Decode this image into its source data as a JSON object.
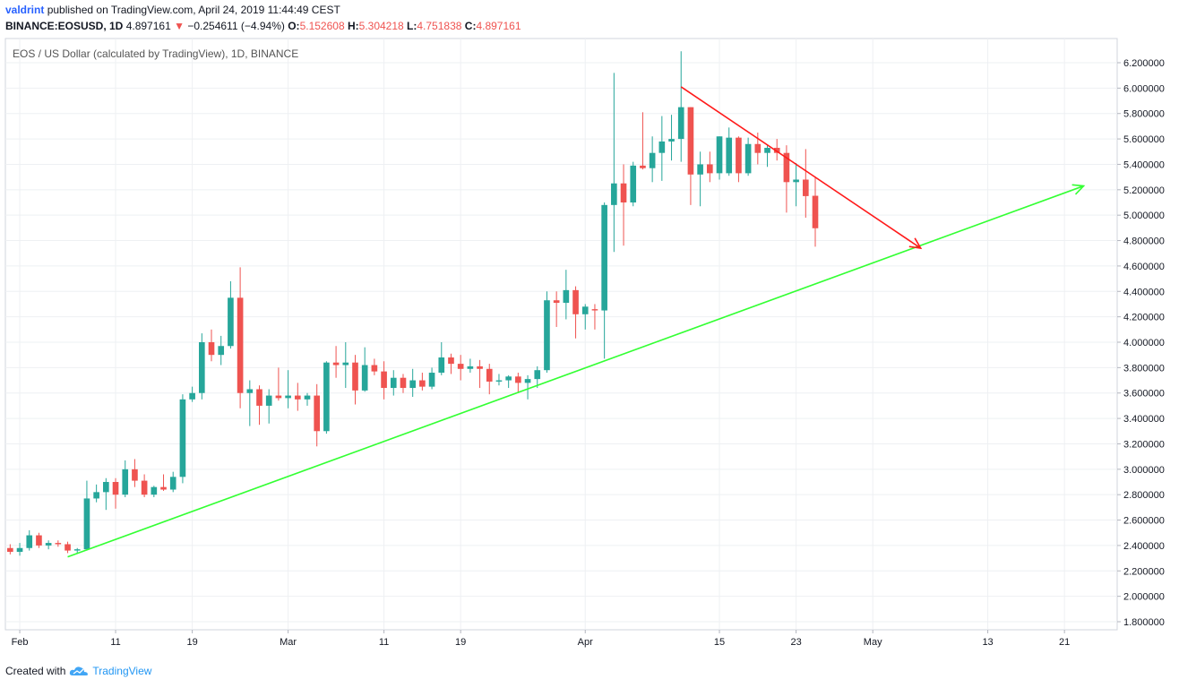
{
  "header": {
    "user": "valdrint",
    "published": "published on TradingView.com, April 24, 2019 11:44:49 CEST",
    "symbol": "BINANCE:EOSUSD, 1D",
    "last": "4.897161",
    "change": "−0.254611 (−4.94%)",
    "o_label": "O:",
    "o": "5.152608",
    "h_label": "H:",
    "h": "5.304218",
    "l_label": "L:",
    "l": "4.751838",
    "c_label": "C:",
    "c": "4.897161"
  },
  "footer": {
    "created_with": "Created with",
    "brand": "TradingView"
  },
  "colors": {
    "up": "#26a69a",
    "down": "#ef5350",
    "support_line": "#33ff33",
    "resistance_line": "#ff1a1a",
    "grid": "#eef0f3"
  },
  "chart_data": {
    "type": "candlestick",
    "title": "EOS / US Dollar (calculated by TradingView), 1D, BINANCE",
    "ylim": [
      1.7,
      6.35
    ],
    "y_ticks": [
      "6.200000",
      "6.000000",
      "5.800000",
      "5.600000",
      "5.400000",
      "5.200000",
      "5.000000",
      "4.800000",
      "4.600000",
      "4.400000",
      "4.200000",
      "4.000000",
      "3.800000",
      "3.600000",
      "3.400000",
      "3.200000",
      "3.000000",
      "2.800000",
      "2.600000",
      "2.400000",
      "2.200000",
      "2.000000",
      "1.800000"
    ],
    "x_ticks": [
      {
        "label": "Feb",
        "date": "2019-02-01"
      },
      {
        "label": "11",
        "date": "2019-02-11"
      },
      {
        "label": "19",
        "date": "2019-02-19"
      },
      {
        "label": "Mar",
        "date": "2019-03-01"
      },
      {
        "label": "11",
        "date": "2019-03-11"
      },
      {
        "label": "19",
        "date": "2019-03-19"
      },
      {
        "label": "Apr",
        "date": "2019-04-01"
      },
      {
        "label": "15",
        "date": "2019-04-15"
      },
      {
        "label": "23",
        "date": "2019-04-23"
      },
      {
        "label": "May",
        "date": "2019-05-01"
      },
      {
        "label": "13",
        "date": "2019-05-13"
      },
      {
        "label": "21",
        "date": "2019-05-21"
      }
    ],
    "x_range": [
      "2019-01-31",
      "2019-05-27"
    ],
    "candles": [
      {
        "date": "2019-01-31",
        "o": 2.38,
        "h": 2.41,
        "l": 2.33,
        "c": 2.35
      },
      {
        "date": "2019-02-01",
        "o": 2.35,
        "h": 2.42,
        "l": 2.32,
        "c": 2.38
      },
      {
        "date": "2019-02-02",
        "o": 2.38,
        "h": 2.52,
        "l": 2.36,
        "c": 2.48
      },
      {
        "date": "2019-02-03",
        "o": 2.48,
        "h": 2.5,
        "l": 2.38,
        "c": 2.4
      },
      {
        "date": "2019-02-04",
        "o": 2.4,
        "h": 2.44,
        "l": 2.37,
        "c": 2.42
      },
      {
        "date": "2019-02-05",
        "o": 2.42,
        "h": 2.44,
        "l": 2.39,
        "c": 2.41
      },
      {
        "date": "2019-02-06",
        "o": 2.41,
        "h": 2.43,
        "l": 2.34,
        "c": 2.36
      },
      {
        "date": "2019-02-07",
        "o": 2.36,
        "h": 2.38,
        "l": 2.34,
        "c": 2.37
      },
      {
        "date": "2019-02-08",
        "o": 2.37,
        "h": 2.91,
        "l": 2.36,
        "c": 2.77
      },
      {
        "date": "2019-02-09",
        "o": 2.77,
        "h": 2.88,
        "l": 2.74,
        "c": 2.82
      },
      {
        "date": "2019-02-10",
        "o": 2.82,
        "h": 2.93,
        "l": 2.68,
        "c": 2.9
      },
      {
        "date": "2019-02-11",
        "o": 2.9,
        "h": 2.93,
        "l": 2.69,
        "c": 2.8
      },
      {
        "date": "2019-02-12",
        "o": 2.8,
        "h": 3.07,
        "l": 2.78,
        "c": 3.0
      },
      {
        "date": "2019-02-13",
        "o": 3.0,
        "h": 3.08,
        "l": 2.86,
        "c": 2.91
      },
      {
        "date": "2019-02-14",
        "o": 2.91,
        "h": 2.96,
        "l": 2.78,
        "c": 2.8
      },
      {
        "date": "2019-02-15",
        "o": 2.8,
        "h": 2.87,
        "l": 2.78,
        "c": 2.86
      },
      {
        "date": "2019-02-16",
        "o": 2.86,
        "h": 2.96,
        "l": 2.83,
        "c": 2.84
      },
      {
        "date": "2019-02-17",
        "o": 2.84,
        "h": 2.98,
        "l": 2.82,
        "c": 2.94
      },
      {
        "date": "2019-02-18",
        "o": 2.94,
        "h": 3.59,
        "l": 2.89,
        "c": 3.55
      },
      {
        "date": "2019-02-19",
        "o": 3.55,
        "h": 3.65,
        "l": 3.53,
        "c": 3.6
      },
      {
        "date": "2019-02-20",
        "o": 3.6,
        "h": 4.07,
        "l": 3.55,
        "c": 4.0
      },
      {
        "date": "2019-02-21",
        "o": 4.0,
        "h": 4.1,
        "l": 3.85,
        "c": 3.9
      },
      {
        "date": "2019-02-22",
        "o": 3.9,
        "h": 4.05,
        "l": 3.82,
        "c": 3.97
      },
      {
        "date": "2019-02-23",
        "o": 3.97,
        "h": 4.48,
        "l": 3.95,
        "c": 4.35
      },
      {
        "date": "2019-02-24",
        "o": 4.35,
        "h": 4.59,
        "l": 3.48,
        "c": 3.6
      },
      {
        "date": "2019-02-25",
        "o": 3.6,
        "h": 3.7,
        "l": 3.34,
        "c": 3.63
      },
      {
        "date": "2019-02-26",
        "o": 3.63,
        "h": 3.66,
        "l": 3.35,
        "c": 3.5
      },
      {
        "date": "2019-02-27",
        "o": 3.5,
        "h": 3.63,
        "l": 3.36,
        "c": 3.58
      },
      {
        "date": "2019-02-28",
        "o": 3.58,
        "h": 3.8,
        "l": 3.54,
        "c": 3.56
      },
      {
        "date": "2019-03-01",
        "o": 3.56,
        "h": 3.78,
        "l": 3.48,
        "c": 3.58
      },
      {
        "date": "2019-03-02",
        "o": 3.58,
        "h": 3.68,
        "l": 3.46,
        "c": 3.55
      },
      {
        "date": "2019-03-03",
        "o": 3.55,
        "h": 3.6,
        "l": 3.5,
        "c": 3.58
      },
      {
        "date": "2019-03-04",
        "o": 3.58,
        "h": 3.67,
        "l": 3.18,
        "c": 3.3
      },
      {
        "date": "2019-03-05",
        "o": 3.3,
        "h": 3.85,
        "l": 3.28,
        "c": 3.84
      },
      {
        "date": "2019-03-06",
        "o": 3.84,
        "h": 3.97,
        "l": 3.72,
        "c": 3.82
      },
      {
        "date": "2019-03-07",
        "o": 3.82,
        "h": 4.0,
        "l": 3.64,
        "c": 3.84
      },
      {
        "date": "2019-03-08",
        "o": 3.84,
        "h": 3.9,
        "l": 3.51,
        "c": 3.62
      },
      {
        "date": "2019-03-09",
        "o": 3.62,
        "h": 3.96,
        "l": 3.61,
        "c": 3.82
      },
      {
        "date": "2019-03-10",
        "o": 3.82,
        "h": 3.87,
        "l": 3.74,
        "c": 3.77
      },
      {
        "date": "2019-03-11",
        "o": 3.77,
        "h": 3.85,
        "l": 3.55,
        "c": 3.64
      },
      {
        "date": "2019-03-12",
        "o": 3.64,
        "h": 3.78,
        "l": 3.58,
        "c": 3.72
      },
      {
        "date": "2019-03-13",
        "o": 3.72,
        "h": 3.75,
        "l": 3.6,
        "c": 3.64
      },
      {
        "date": "2019-03-14",
        "o": 3.64,
        "h": 3.79,
        "l": 3.57,
        "c": 3.7
      },
      {
        "date": "2019-03-15",
        "o": 3.7,
        "h": 3.76,
        "l": 3.62,
        "c": 3.65
      },
      {
        "date": "2019-03-16",
        "o": 3.65,
        "h": 3.8,
        "l": 3.63,
        "c": 3.76
      },
      {
        "date": "2019-03-17",
        "o": 3.76,
        "h": 4.0,
        "l": 3.74,
        "c": 3.88
      },
      {
        "date": "2019-03-18",
        "o": 3.88,
        "h": 3.91,
        "l": 3.75,
        "c": 3.83
      },
      {
        "date": "2019-03-19",
        "o": 3.83,
        "h": 3.9,
        "l": 3.7,
        "c": 3.79
      },
      {
        "date": "2019-03-20",
        "o": 3.79,
        "h": 3.87,
        "l": 3.76,
        "c": 3.81
      },
      {
        "date": "2019-03-21",
        "o": 3.81,
        "h": 3.86,
        "l": 3.64,
        "c": 3.79
      },
      {
        "date": "2019-03-22",
        "o": 3.79,
        "h": 3.83,
        "l": 3.59,
        "c": 3.69
      },
      {
        "date": "2019-03-23",
        "o": 3.69,
        "h": 3.75,
        "l": 3.66,
        "c": 3.7
      },
      {
        "date": "2019-03-24",
        "o": 3.7,
        "h": 3.74,
        "l": 3.64,
        "c": 3.73
      },
      {
        "date": "2019-03-25",
        "o": 3.73,
        "h": 3.76,
        "l": 3.6,
        "c": 3.68
      },
      {
        "date": "2019-03-26",
        "o": 3.68,
        "h": 3.74,
        "l": 3.55,
        "c": 3.71
      },
      {
        "date": "2019-03-27",
        "o": 3.71,
        "h": 3.81,
        "l": 3.64,
        "c": 3.78
      },
      {
        "date": "2019-03-28",
        "o": 3.78,
        "h": 4.4,
        "l": 3.76,
        "c": 4.33
      },
      {
        "date": "2019-03-29",
        "o": 4.33,
        "h": 4.4,
        "l": 4.12,
        "c": 4.31
      },
      {
        "date": "2019-03-30",
        "o": 4.31,
        "h": 4.57,
        "l": 4.18,
        "c": 4.41
      },
      {
        "date": "2019-03-31",
        "o": 4.41,
        "h": 4.44,
        "l": 4.03,
        "c": 4.22
      },
      {
        "date": "2019-04-01",
        "o": 4.22,
        "h": 4.3,
        "l": 4.1,
        "c": 4.28
      },
      {
        "date": "2019-04-02",
        "o": 4.26,
        "h": 4.3,
        "l": 4.1,
        "c": 4.25
      },
      {
        "date": "2019-04-03",
        "o": 4.25,
        "h": 5.1,
        "l": 3.87,
        "c": 5.08
      },
      {
        "date": "2019-04-04",
        "o": 5.08,
        "h": 6.12,
        "l": 4.71,
        "c": 5.25
      },
      {
        "date": "2019-04-05",
        "o": 5.25,
        "h": 5.4,
        "l": 4.76,
        "c": 5.1
      },
      {
        "date": "2019-04-06",
        "o": 5.1,
        "h": 5.42,
        "l": 5.07,
        "c": 5.39
      },
      {
        "date": "2019-04-07",
        "o": 5.39,
        "h": 5.81,
        "l": 5.36,
        "c": 5.37
      },
      {
        "date": "2019-04-08",
        "o": 5.37,
        "h": 5.62,
        "l": 5.26,
        "c": 5.49
      },
      {
        "date": "2019-04-09",
        "o": 5.49,
        "h": 5.78,
        "l": 5.27,
        "c": 5.58
      },
      {
        "date": "2019-04-10",
        "o": 5.58,
        "h": 5.79,
        "l": 5.43,
        "c": 5.6
      },
      {
        "date": "2019-04-11",
        "o": 5.6,
        "h": 6.29,
        "l": 5.42,
        "c": 5.85
      },
      {
        "date": "2019-04-12",
        "o": 5.85,
        "h": 5.85,
        "l": 5.08,
        "c": 5.32
      },
      {
        "date": "2019-04-13",
        "o": 5.32,
        "h": 5.5,
        "l": 5.07,
        "c": 5.4
      },
      {
        "date": "2019-04-14",
        "o": 5.4,
        "h": 5.5,
        "l": 5.26,
        "c": 5.33
      },
      {
        "date": "2019-04-15",
        "o": 5.33,
        "h": 5.62,
        "l": 5.28,
        "c": 5.62
      },
      {
        "date": "2019-04-16",
        "o": 5.33,
        "h": 5.69,
        "l": 5.31,
        "c": 5.61
      },
      {
        "date": "2019-04-17",
        "o": 5.61,
        "h": 5.62,
        "l": 5.26,
        "c": 5.33
      },
      {
        "date": "2019-04-18",
        "o": 5.33,
        "h": 5.61,
        "l": 5.31,
        "c": 5.56
      },
      {
        "date": "2019-04-19",
        "o": 5.56,
        "h": 5.65,
        "l": 5.4,
        "c": 5.49
      },
      {
        "date": "2019-04-20",
        "o": 5.49,
        "h": 5.55,
        "l": 5.38,
        "c": 5.53
      },
      {
        "date": "2019-04-21",
        "o": 5.53,
        "h": 5.6,
        "l": 5.43,
        "c": 5.49
      },
      {
        "date": "2019-04-22",
        "o": 5.49,
        "h": 5.55,
        "l": 5.02,
        "c": 5.26
      },
      {
        "date": "2019-04-23",
        "o": 5.26,
        "h": 5.41,
        "l": 5.07,
        "c": 5.28
      },
      {
        "date": "2019-04-24",
        "o": 5.28,
        "h": 5.52,
        "l": 4.98,
        "c": 5.15
      },
      {
        "date": "2019-04-25",
        "o": 5.152608,
        "h": 5.304218,
        "l": 4.751838,
        "c": 4.897161
      }
    ],
    "trendlines": [
      {
        "kind": "support",
        "color": "#33ff33",
        "from": {
          "date": "2019-02-06",
          "price": 2.31
        },
        "to": {
          "date": "2019-05-23",
          "price": 5.23
        },
        "arrow": true
      },
      {
        "kind": "resistance",
        "color": "#ff1a1a",
        "from": {
          "date": "2019-04-11",
          "price": 6.01
        },
        "to": {
          "date": "2019-05-06",
          "price": 4.74
        },
        "arrow": true
      }
    ]
  }
}
